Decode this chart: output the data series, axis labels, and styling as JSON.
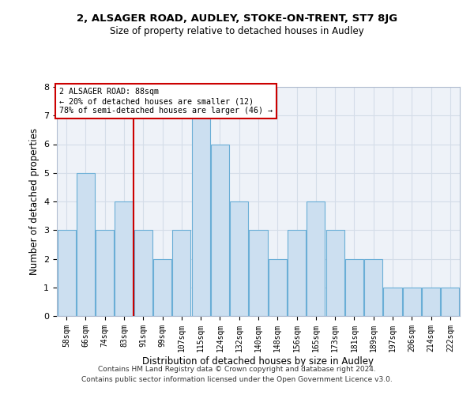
{
  "title1": "2, ALSAGER ROAD, AUDLEY, STOKE-ON-TRENT, ST7 8JG",
  "title2": "Size of property relative to detached houses in Audley",
  "xlabel": "Distribution of detached houses by size in Audley",
  "ylabel": "Number of detached properties",
  "categories": [
    "58sqm",
    "66sqm",
    "74sqm",
    "83sqm",
    "91sqm",
    "99sqm",
    "107sqm",
    "115sqm",
    "124sqm",
    "132sqm",
    "140sqm",
    "148sqm",
    "156sqm",
    "165sqm",
    "173sqm",
    "181sqm",
    "189sqm",
    "197sqm",
    "206sqm",
    "214sqm",
    "222sqm"
  ],
  "values": [
    3,
    5,
    3,
    4,
    3,
    2,
    3,
    7,
    6,
    4,
    3,
    2,
    3,
    4,
    3,
    2,
    2,
    1,
    1,
    1,
    1
  ],
  "bar_color": "#ccdff0",
  "bar_edge_color": "#6aaed6",
  "marker_label": "2 ALSAGER ROAD: 88sqm",
  "annotation_line1": "← 20% of detached houses are smaller (12)",
  "annotation_line2": "78% of semi-detached houses are larger (46) →",
  "annotation_box_color": "#ffffff",
  "annotation_box_edge": "#cc0000",
  "grid_color": "#d4dde8",
  "bg_color": "#eef2f8",
  "ylim": [
    0,
    8
  ],
  "yticks": [
    0,
    1,
    2,
    3,
    4,
    5,
    6,
    7,
    8
  ],
  "footer1": "Contains HM Land Registry data © Crown copyright and database right 2024.",
  "footer2": "Contains public sector information licensed under the Open Government Licence v3.0.",
  "vline_color": "#cc0000",
  "vline_x": 3.5
}
